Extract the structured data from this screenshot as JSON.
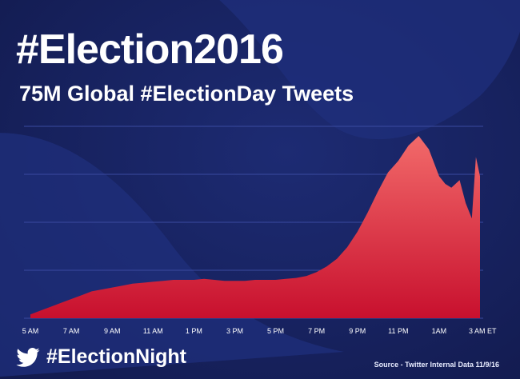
{
  "header": {
    "title": "#Election2016",
    "subtitle": "75M Global #ElectionDay Tweets"
  },
  "footer": {
    "hashtag": "#ElectionNight",
    "source": "Source - Twitter Internal Data 11/9/16"
  },
  "icons": {
    "footer_logo": "twitter-bird-icon",
    "background": "twitter-bird-icon"
  },
  "colors": {
    "background": "#17225f",
    "area_top": "#f26a6a",
    "area_bottom": "#c8102e",
    "text": "#ffffff"
  },
  "chart_data": {
    "type": "area",
    "title": "75M Global #ElectionDay Tweets",
    "xlabel": "",
    "ylabel": "",
    "grid": true,
    "y_ticks_labeled": false,
    "ylim": [
      0,
      100
    ],
    "x_tick_labels": [
      "5 AM",
      "7 AM",
      "9 AM",
      "11 AM",
      "1 PM",
      "3 PM",
      "5 PM",
      "7 PM",
      "9 PM",
      "11 PM",
      "1AM",
      "3 AM ET"
    ],
    "xlim_hours": [
      5,
      27
    ],
    "series": [
      {
        "x_hours": [
          5,
          5.5,
          6,
          6.5,
          7,
          7.5,
          8,
          8.5,
          9,
          9.5,
          10,
          10.5,
          11,
          11.5,
          12,
          12.5,
          13,
          13.5,
          14,
          14.5,
          15,
          15.5,
          16,
          16.5,
          17,
          17.5,
          18,
          18.5,
          19,
          19.5,
          20,
          20.5,
          21,
          21.5,
          22,
          22.5,
          23,
          23.5,
          24,
          24.5,
          25,
          25.3,
          25.6,
          26,
          26.3,
          26.6,
          26.8,
          27
        ],
        "values": [
          2,
          4,
          6,
          8,
          10,
          12,
          14,
          15,
          16,
          17,
          18,
          18.5,
          19,
          19.5,
          20,
          20,
          20,
          20.5,
          20,
          19.5,
          19.5,
          19.5,
          20,
          20,
          20,
          20.5,
          21,
          22,
          24,
          27,
          31,
          37,
          45,
          55,
          66,
          76,
          82,
          90,
          95,
          88,
          74,
          70,
          68,
          72,
          60,
          52,
          84,
          74
        ]
      }
    ]
  }
}
